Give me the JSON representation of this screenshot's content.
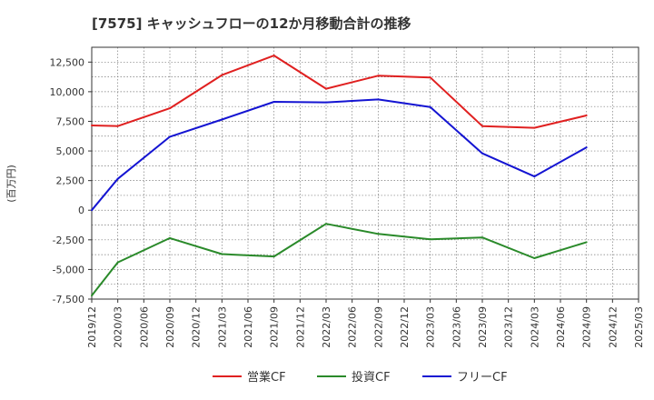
{
  "chart_data": {
    "type": "line",
    "title": "[7575]  キャッシュフローの12か月移動合計の推移",
    "ylabel": "(百万円)",
    "xlabel": "",
    "ylim": [
      -7500,
      13750
    ],
    "yticks": [
      12500,
      10000,
      7500,
      5000,
      2500,
      0,
      -2500,
      -5000,
      -7500
    ],
    "ytick_labels": [
      "12,500",
      "10,000",
      "7,500",
      "5,000",
      "2,500",
      "0",
      "-2,500",
      "-5,000",
      "-7,500"
    ],
    "categories": [
      "2019/12",
      "2020/03",
      "2020/06",
      "2020/09",
      "2020/12",
      "2021/03",
      "2021/06",
      "2021/09",
      "2021/12",
      "2022/03",
      "2022/06",
      "2022/09",
      "2022/12",
      "2023/03",
      "2023/06",
      "2023/09",
      "2023/12",
      "2024/03",
      "2024/06",
      "2024/09",
      "2024/12",
      "2025/03"
    ],
    "grid": true,
    "legend_position": "bottom",
    "series": [
      {
        "name": "営業CF",
        "color": "#e02020",
        "points": [
          [
            0,
            7150
          ],
          [
            1,
            7100
          ],
          [
            3,
            8600
          ],
          [
            5,
            11400
          ],
          [
            7,
            13050
          ],
          [
            9,
            10250
          ],
          [
            11,
            11350
          ],
          [
            13,
            11200
          ],
          [
            15,
            7100
          ],
          [
            17,
            6950
          ],
          [
            19,
            8000
          ]
        ]
      },
      {
        "name": "投資CF",
        "color": "#2a8a2a",
        "points": [
          [
            0,
            -7200
          ],
          [
            1,
            -4400
          ],
          [
            3,
            -2350
          ],
          [
            5,
            -3700
          ],
          [
            7,
            -3900
          ],
          [
            9,
            -1150
          ],
          [
            11,
            -2000
          ],
          [
            13,
            -2450
          ],
          [
            15,
            -2300
          ],
          [
            17,
            -4050
          ],
          [
            19,
            -2700
          ]
        ]
      },
      {
        "name": "フリーCF",
        "color": "#1414d2",
        "points": [
          [
            0,
            0
          ],
          [
            1,
            2650
          ],
          [
            3,
            6200
          ],
          [
            5,
            7650
          ],
          [
            7,
            9150
          ],
          [
            9,
            9100
          ],
          [
            11,
            9350
          ],
          [
            13,
            8700
          ],
          [
            15,
            4800
          ],
          [
            17,
            2850
          ],
          [
            19,
            5300
          ]
        ]
      }
    ]
  }
}
